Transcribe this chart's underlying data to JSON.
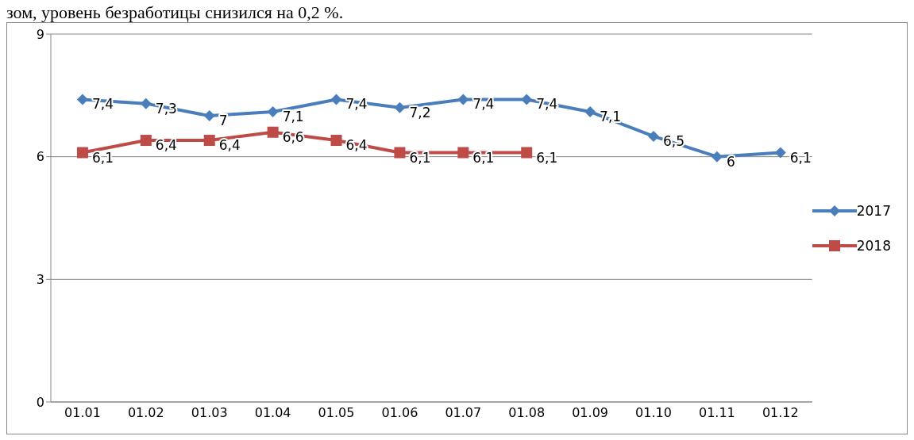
{
  "chart_data": {
    "type": "line",
    "annotations": [
      "зом, уровень безработицы снизился на 0,2 %."
    ],
    "categories": [
      "01.01",
      "01.02",
      "01.03",
      "01.04",
      "01.05",
      "01.06",
      "01.07",
      "01.08",
      "01.09",
      "01.10",
      "01.11",
      "01.12"
    ],
    "series": [
      {
        "name": "2017",
        "color": "#4a7ebb",
        "marker": "diamond",
        "values": [
          7.4,
          7.3,
          7,
          7.1,
          7.4,
          7.2,
          7.4,
          7.4,
          7.1,
          6.5,
          6,
          6.1
        ],
        "value_labels": [
          "7,4",
          "7,3",
          "7",
          "7,1",
          "7,4",
          "7,2",
          "7,4",
          "7,4",
          "7,1",
          "6,5",
          "6",
          "6,1"
        ]
      },
      {
        "name": "2018",
        "color": "#be4b48",
        "marker": "square",
        "values": [
          6.1,
          6.4,
          6.4,
          6.6,
          6.4,
          6.1,
          6.1,
          6.1,
          null,
          null,
          null,
          null
        ],
        "value_labels": [
          "6,1",
          "6,4",
          "6,4",
          "6,6",
          "6,4",
          "6,1",
          "6,1",
          "6,1",
          null,
          null,
          null,
          null
        ]
      }
    ],
    "ylim": [
      0,
      9
    ],
    "yticks": [
      0,
      3,
      6,
      9
    ],
    "grid": "y",
    "legend": "right",
    "line_style": "solid"
  }
}
